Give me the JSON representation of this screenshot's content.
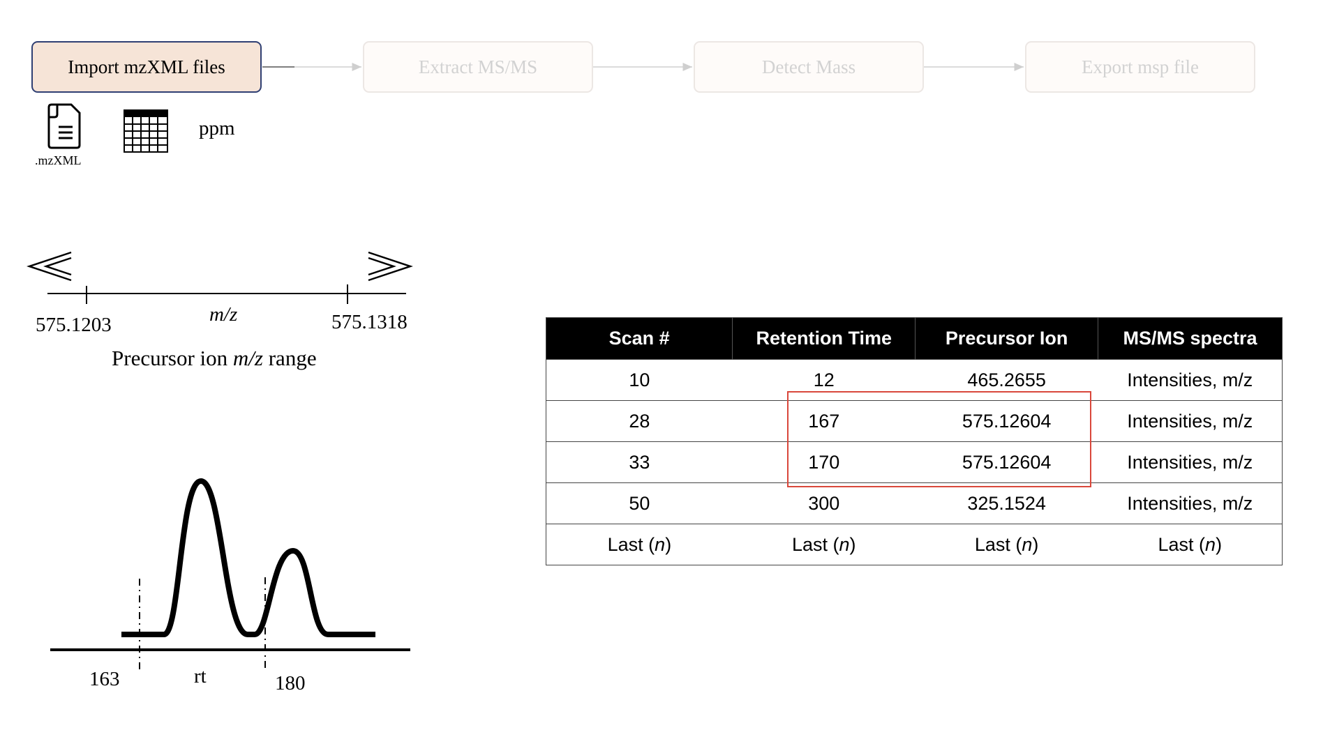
{
  "workflow": {
    "steps": [
      {
        "label": "Import mzXML files",
        "state": "active"
      },
      {
        "label": "Extract MS/MS",
        "state": "inactive"
      },
      {
        "label": "Detect Mass",
        "state": "inactive"
      },
      {
        "label": "Export msp file",
        "state": "inactive"
      }
    ]
  },
  "inputs": {
    "file_icon": "document-icon",
    "file_label": ".mzXML",
    "table_icon": "spreadsheet-icon",
    "ppm_label": "ppm"
  },
  "mz_range": {
    "low": "575.1203",
    "high": "575.1318",
    "axis_label": "m/z",
    "caption_prefix": "Precursor ion ",
    "caption_italic": "m/z",
    "caption_suffix": " range"
  },
  "chromatogram": {
    "rt_start": "163",
    "rt_end": "180",
    "axis_label": "rt"
  },
  "scan_table": {
    "headers": [
      "Scan #",
      "Retention Time",
      "Precursor Ion",
      "MS/MS spectra"
    ],
    "rows": [
      [
        "10",
        "12",
        "465.2655",
        "Intensities, m/z"
      ],
      [
        "28",
        "167",
        "575.12604",
        "Intensities, m/z"
      ],
      [
        "33",
        "170",
        "575.12604",
        "Intensities, m/z"
      ],
      [
        "50",
        "300",
        "325.1524",
        "Intensities, m/z"
      ]
    ],
    "last_row": {
      "prefix": "Last (",
      "italic": "n",
      "suffix": ")"
    },
    "highlight_color": "#d9473b"
  },
  "colors": {
    "active_step_fill": "#f6e4d7",
    "active_step_border": "#2f3f73",
    "inactive_text": "#d2d2d2"
  }
}
